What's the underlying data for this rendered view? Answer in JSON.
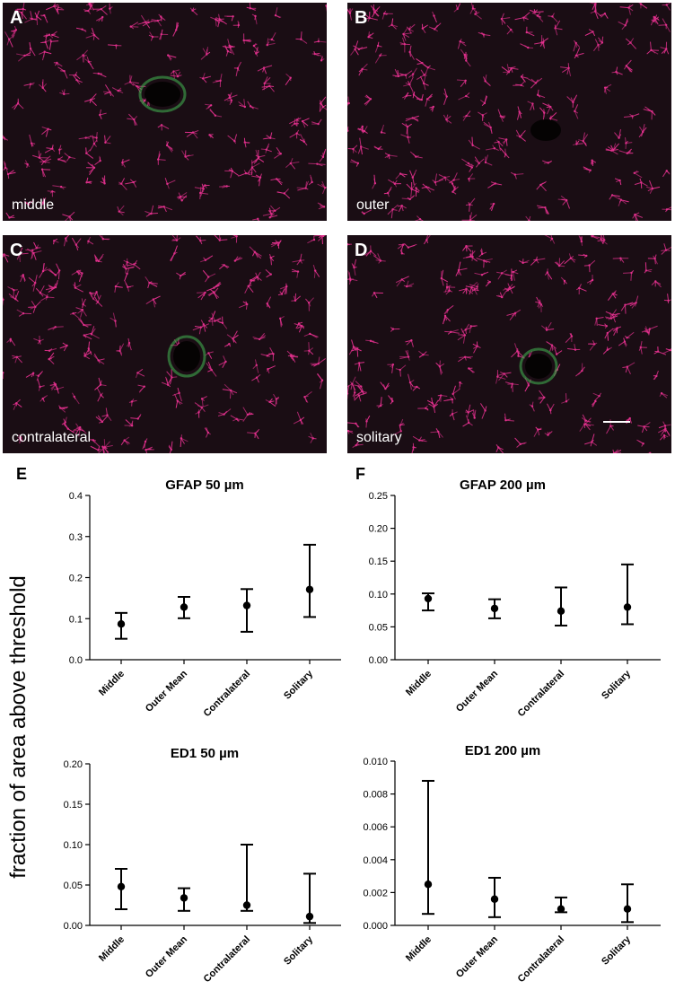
{
  "micrographs": [
    {
      "letter": "A",
      "label": "middle"
    },
    {
      "letter": "B",
      "label": "outer"
    },
    {
      "letter": "C",
      "label": "contralateral"
    },
    {
      "letter": "D",
      "label": "solitary"
    }
  ],
  "colors": {
    "staining_magenta": "#e0308c",
    "ed1_green": "#3fa84c",
    "background": "#1a0d14"
  },
  "ylabel": "fraction of area above threshold",
  "chart_data": [
    {
      "panel": "E",
      "type": "scatter",
      "title": "GFAP 50 µm",
      "categories": [
        "Middle",
        "Outer Mean",
        "Contralateral",
        "Solitary"
      ],
      "values": [
        0.087,
        0.128,
        0.132,
        0.171
      ],
      "err_low": [
        0.051,
        0.101,
        0.068,
        0.104
      ],
      "err_high": [
        0.114,
        0.153,
        0.172,
        0.28
      ],
      "ylim": [
        0,
        0.4
      ],
      "yticks": [
        "0.0",
        "0.1",
        "0.2",
        "0.3",
        "0.4"
      ]
    },
    {
      "panel": "F",
      "type": "scatter",
      "title": "GFAP 200 µm",
      "categories": [
        "Middle",
        "Outer Mean",
        "Contralateral",
        "Solitary"
      ],
      "values": [
        0.093,
        0.078,
        0.074,
        0.08
      ],
      "err_low": [
        0.075,
        0.063,
        0.052,
        0.054
      ],
      "err_high": [
        0.101,
        0.092,
        0.11,
        0.145
      ],
      "ylim": [
        0,
        0.25
      ],
      "yticks": [
        "0.00",
        "0.05",
        "0.10",
        "0.15",
        "0.20",
        "0.25"
      ]
    },
    {
      "panel": "",
      "type": "scatter",
      "title": "ED1 50 µm",
      "categories": [
        "Middle",
        "Outer Mean",
        "Contralateral",
        "Solitary"
      ],
      "values": [
        0.048,
        0.034,
        0.025,
        0.011
      ],
      "err_low": [
        0.02,
        0.018,
        0.018,
        0.003
      ],
      "err_high": [
        0.07,
        0.046,
        0.1,
        0.064
      ],
      "ylim": [
        0,
        0.2
      ],
      "yticks": [
        "0.00",
        "0.05",
        "0.10",
        "0.15",
        "0.20"
      ]
    },
    {
      "panel": "",
      "type": "scatter",
      "title": "ED1 200 µm",
      "categories": [
        "Middle",
        "Outer Mean",
        "Contralateral",
        "Solitary"
      ],
      "values": [
        0.0025,
        0.0016,
        0.001,
        0.001
      ],
      "err_low": [
        0.0007,
        0.0005,
        0.0008,
        0.0002
      ],
      "err_high": [
        0.0088,
        0.0029,
        0.0017,
        0.0025
      ],
      "ylim": [
        0,
        0.01
      ],
      "yticks": [
        "0.000",
        "0.002",
        "0.004",
        "0.006",
        "0.008",
        "0.010"
      ]
    }
  ]
}
